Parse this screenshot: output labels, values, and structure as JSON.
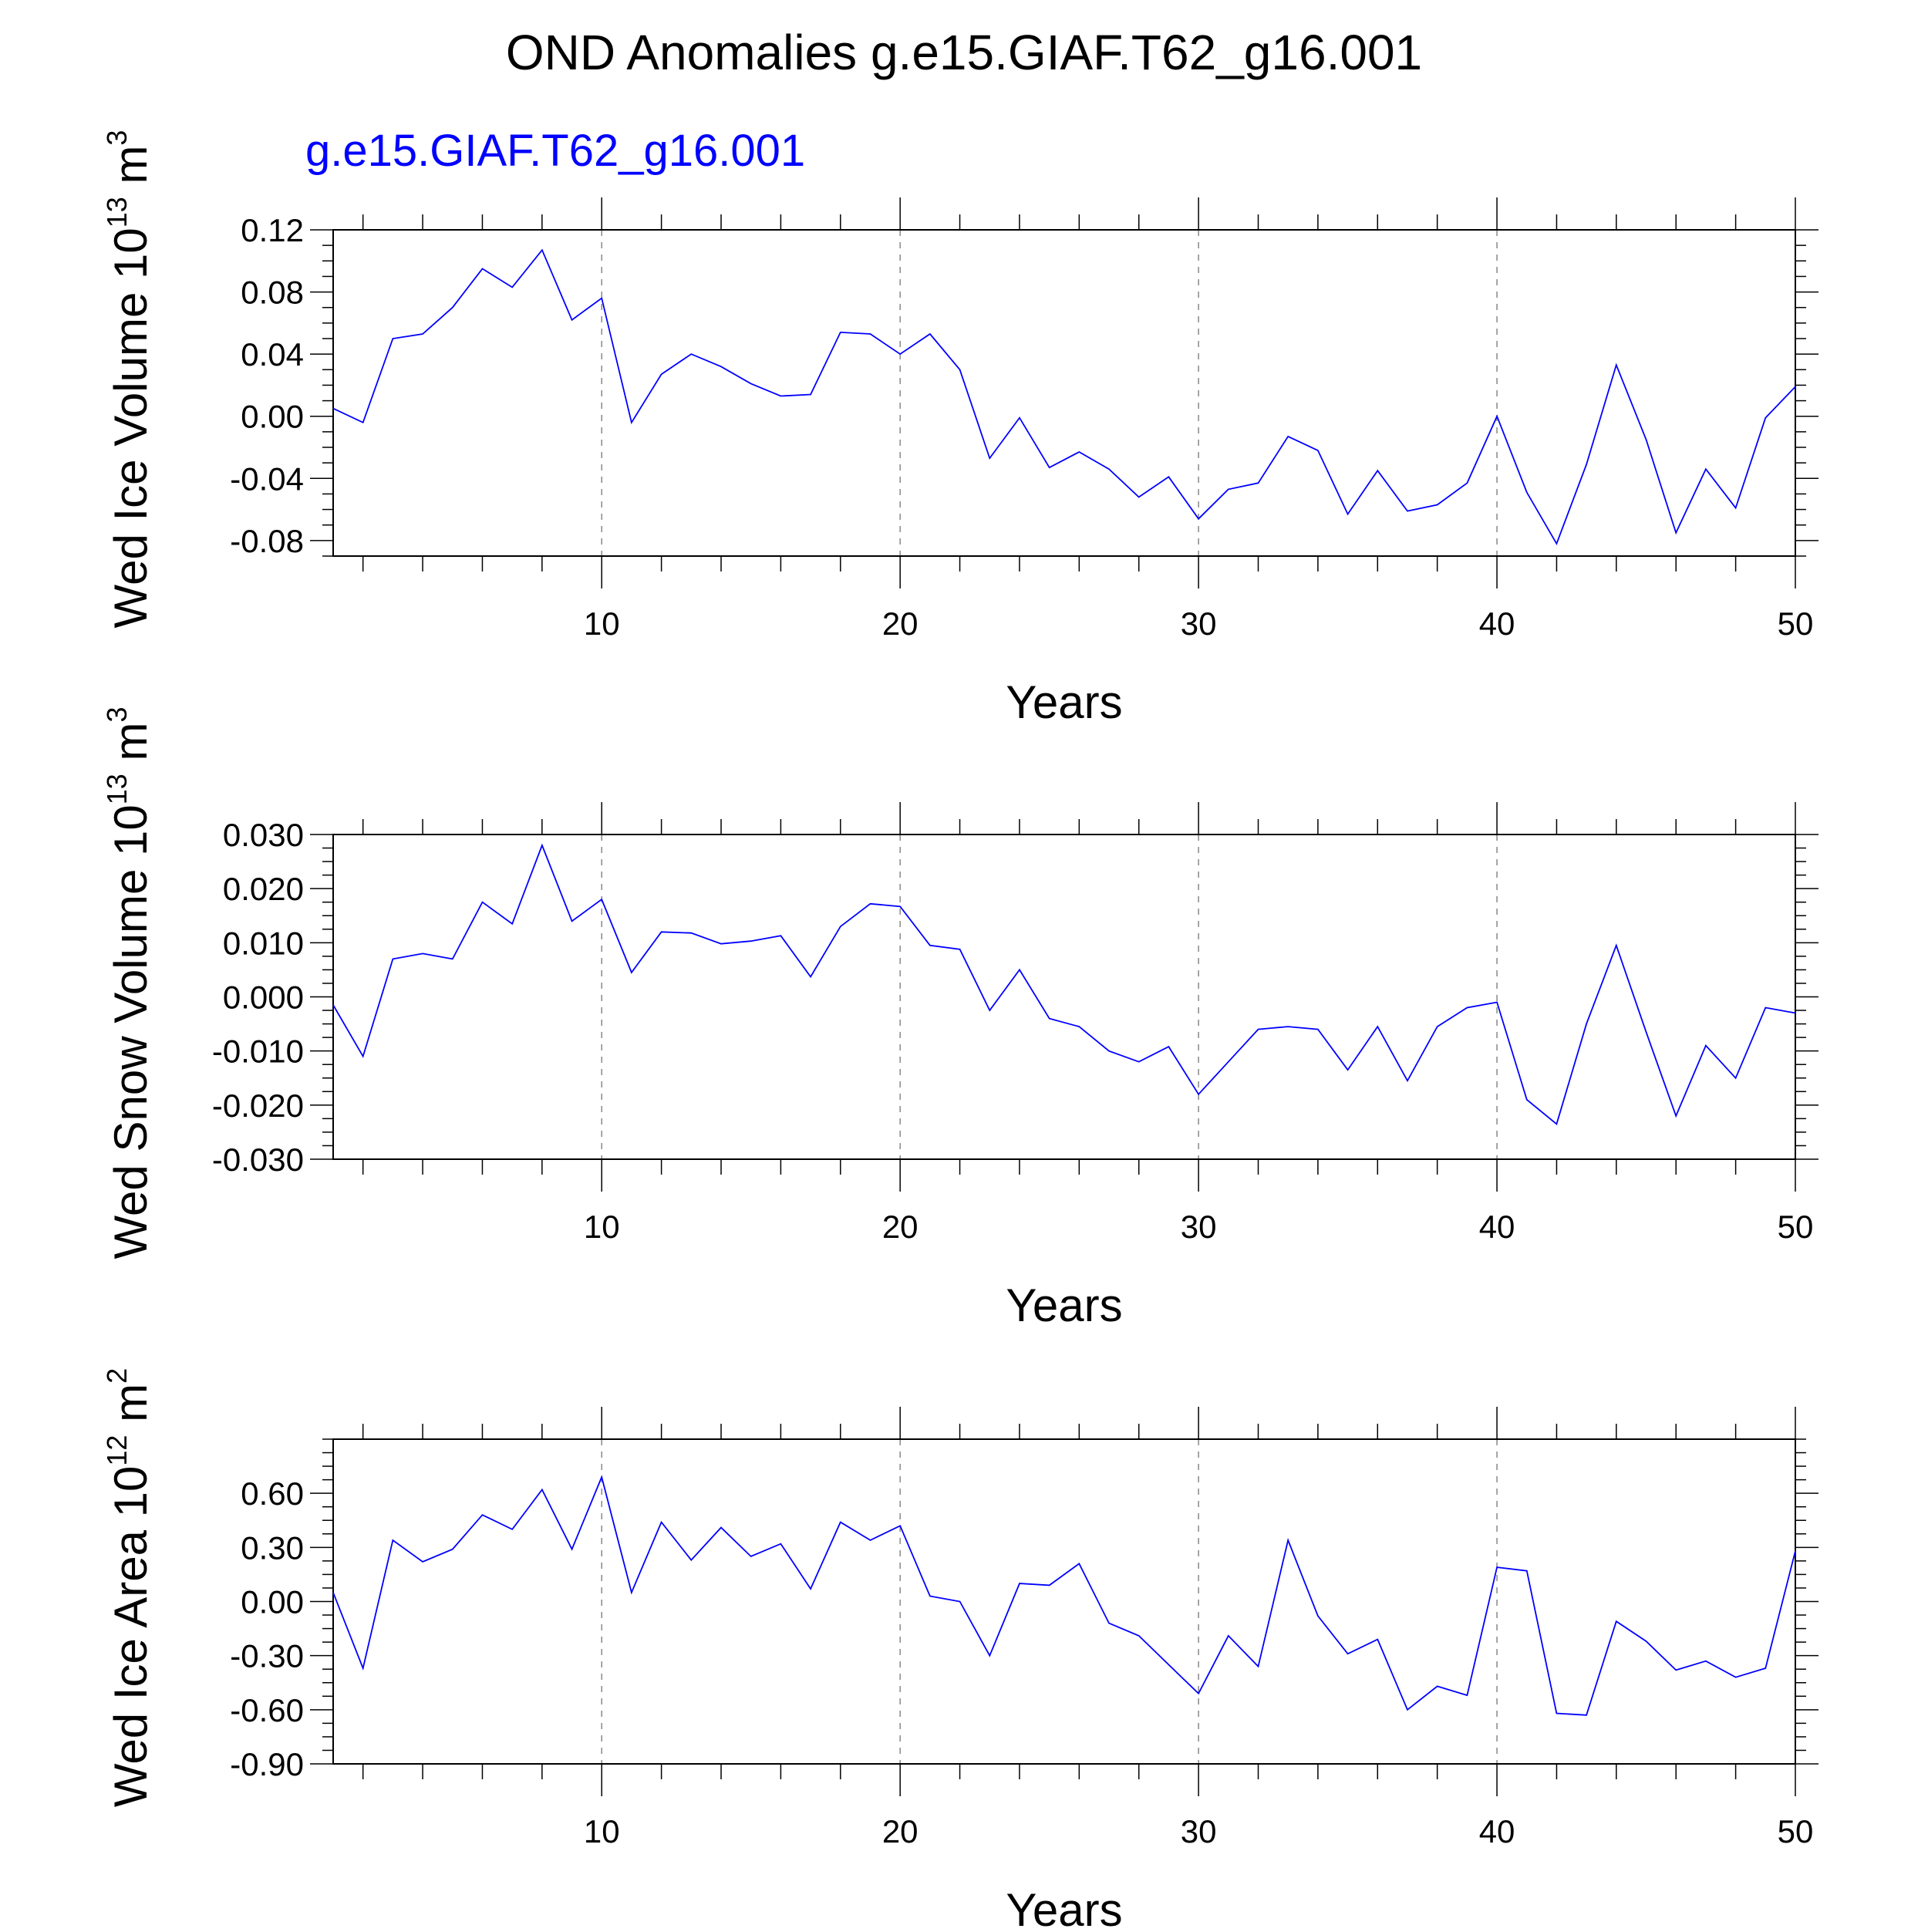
{
  "figure_title": "OND Anomalies g.e15.GIAF.T62_g16.001",
  "case_label": "g.e15.GIAF.T62_g16.001",
  "colors": {
    "series": "#0000ff",
    "axes": "#000000",
    "grid": "#888888",
    "case_label": "#0000ff"
  },
  "chart_data": [
    {
      "type": "line",
      "ylabel": "Wed Ice Volume",
      "unit_base": "10",
      "unit_exp": "13",
      "unit_sym": "m",
      "unit_sym_exp": "3",
      "xlabel": "Years",
      "xlim": [
        1,
        50
      ],
      "ylim": [
        -0.09,
        0.12
      ],
      "yticks": [
        "0.12",
        "0.08",
        "0.04",
        "0.00",
        "-0.04",
        "-0.08"
      ],
      "xticks": [
        "10",
        "20",
        "30",
        "40",
        "50"
      ],
      "grid": "dashed vertical lines at 10, 20, 30, 40",
      "series": [
        {
          "values": [
            0.005,
            -0.004,
            0.05,
            0.053,
            0.07,
            0.095,
            0.083,
            0.107,
            0.062,
            0.076,
            -0.004,
            0.027,
            0.04,
            0.032,
            0.021,
            0.013,
            0.014,
            0.054,
            0.053,
            0.04,
            0.053,
            0.03,
            -0.027,
            -0.001,
            -0.033,
            -0.023,
            -0.034,
            -0.052,
            -0.039,
            -0.066,
            -0.047,
            -0.043,
            -0.013,
            -0.022,
            -0.063,
            -0.035,
            -0.061,
            -0.057,
            -0.043,
            0.0,
            -0.049,
            -0.082,
            -0.031,
            0.033,
            -0.015,
            -0.075,
            -0.034,
            -0.059,
            -0.001,
            0.019
          ]
        }
      ]
    },
    {
      "type": "line",
      "ylabel": "Wed Snow Volume",
      "unit_base": "10",
      "unit_exp": "13",
      "unit_sym": "m",
      "unit_sym_exp": "3",
      "xlabel": "Years",
      "xlim": [
        1,
        50
      ],
      "ylim": [
        -0.03,
        0.03
      ],
      "yticks": [
        "0.030",
        "0.020",
        "0.010",
        "0.000",
        "-0.010",
        "-0.020",
        "-0.030"
      ],
      "xticks": [
        "10",
        "20",
        "30",
        "40",
        "50"
      ],
      "grid": "dashed vertical lines at 10, 20, 30, 40",
      "series": [
        {
          "values": [
            -0.0015,
            -0.011,
            0.007,
            0.008,
            0.007,
            0.0175,
            0.0135,
            0.028,
            0.014,
            0.018,
            0.0045,
            0.012,
            0.0118,
            0.0098,
            0.0103,
            0.0113,
            0.0037,
            0.013,
            0.0172,
            0.0167,
            0.0095,
            0.0088,
            -0.0025,
            0.005,
            -0.004,
            -0.0055,
            -0.01,
            -0.012,
            -0.0092,
            -0.018,
            -0.012,
            -0.006,
            -0.0055,
            -0.006,
            -0.0135,
            -0.0055,
            -0.0155,
            -0.0055,
            -0.002,
            -0.001,
            -0.019,
            -0.0235,
            -0.005,
            0.0095,
            -0.0065,
            -0.022,
            -0.009,
            -0.015,
            -0.002,
            -0.003
          ]
        }
      ]
    },
    {
      "type": "line",
      "ylabel": "Wed Ice Area",
      "unit_base": "10",
      "unit_exp": "12",
      "unit_sym": "m",
      "unit_sym_exp": "2",
      "xlabel": "Years",
      "xlim": [
        1,
        50
      ],
      "ylim": [
        -0.9,
        0.9
      ],
      "yticks": [
        "0.60",
        "0.30",
        "0.00",
        "-0.30",
        "-0.60",
        "-0.90"
      ],
      "xticks": [
        "10",
        "20",
        "30",
        "40",
        "50"
      ],
      "grid": "dashed vertical lines at 10, 20, 30, 40",
      "series": [
        {
          "values": [
            0.05,
            -0.37,
            0.34,
            0.22,
            0.29,
            0.48,
            0.4,
            0.62,
            0.29,
            0.69,
            0.05,
            0.44,
            0.23,
            0.41,
            0.25,
            0.32,
            0.07,
            0.44,
            0.34,
            0.42,
            0.03,
            0.0,
            -0.3,
            0.1,
            0.09,
            0.21,
            -0.12,
            -0.19,
            -0.35,
            -0.51,
            -0.19,
            -0.36,
            0.34,
            -0.08,
            -0.29,
            -0.21,
            -0.6,
            -0.47,
            -0.52,
            0.19,
            0.17,
            -0.62,
            -0.63,
            -0.11,
            -0.22,
            -0.38,
            -0.33,
            -0.42,
            -0.37,
            0.28
          ]
        }
      ]
    }
  ]
}
